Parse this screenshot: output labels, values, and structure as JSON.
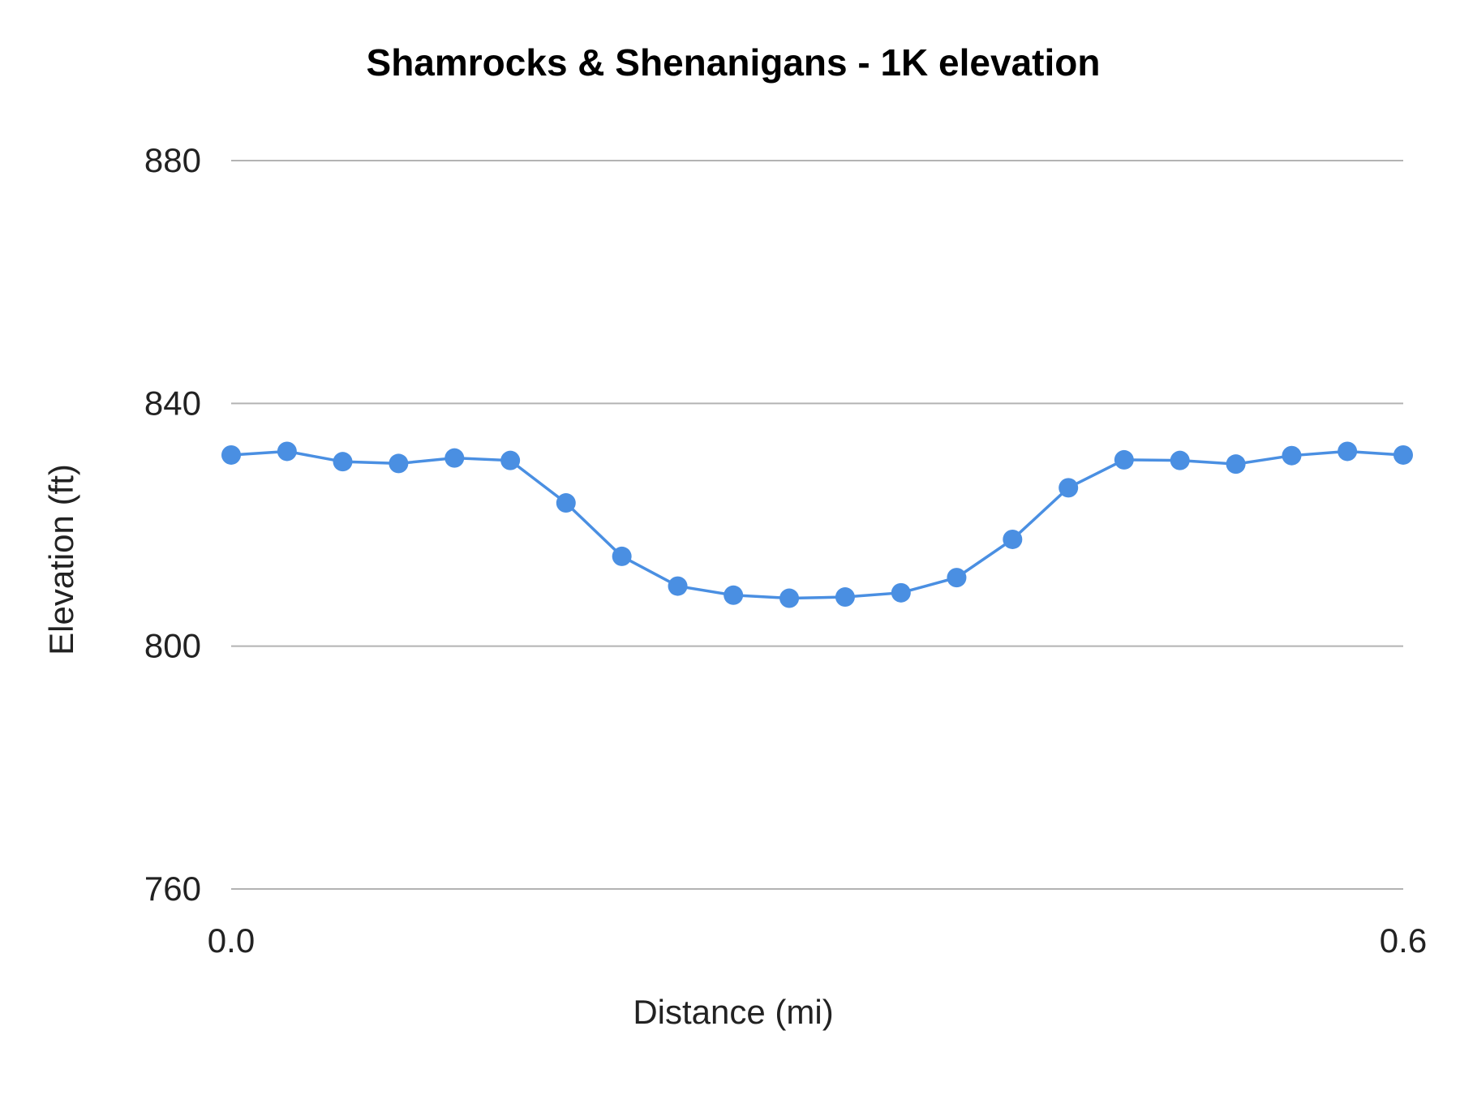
{
  "chart_data": {
    "type": "line",
    "title": "Shamrocks & Shenanigans - 1K elevation",
    "xlabel": "Distance (mi)",
    "ylabel": "Elevation (ft)",
    "xlim": [
      0.0,
      0.6
    ],
    "ylim": [
      760,
      880
    ],
    "x_ticks": [
      "0.0",
      "0.6"
    ],
    "y_ticks": [
      "760",
      "800",
      "840",
      "880"
    ],
    "grid": true,
    "legend": "none",
    "markers": true,
    "color": "#4a8fe2",
    "x": [
      0.0,
      0.0286,
      0.0571,
      0.0857,
      0.1143,
      0.1429,
      0.1714,
      0.2,
      0.2286,
      0.2571,
      0.2857,
      0.3143,
      0.3429,
      0.3714,
      0.4,
      0.4286,
      0.4571,
      0.4857,
      0.5143,
      0.5429,
      0.5714,
      0.6
    ],
    "y": [
      831.5,
      832.1,
      830.4,
      830.1,
      831.0,
      830.6,
      823.6,
      814.8,
      809.9,
      808.4,
      807.9,
      808.1,
      808.8,
      811.3,
      817.6,
      826.1,
      830.7,
      830.6,
      830.0,
      831.4,
      832.1,
      831.5
    ]
  }
}
